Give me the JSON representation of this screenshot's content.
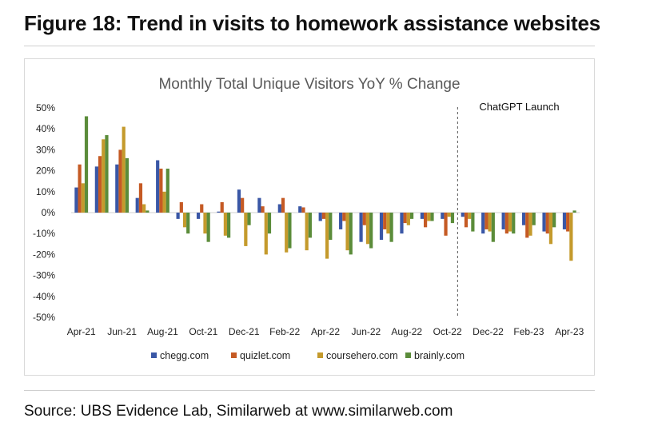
{
  "figure": {
    "title": "Figure 18: Trend in visits to homework assistance websites",
    "source": "Source: UBS Evidence Lab, Similarweb at www.similarweb.com"
  },
  "chart_data": {
    "type": "bar",
    "title": "Monthly Total Unique Visitors YoY % Change",
    "xlabel": "",
    "ylabel": "",
    "ylim": [
      -50,
      50
    ],
    "y_ticks": [
      "50%",
      "40%",
      "30%",
      "20%",
      "10%",
      "0%",
      "-10%",
      "-20%",
      "-30%",
      "-40%",
      "-50%"
    ],
    "y_tick_values": [
      50,
      40,
      30,
      20,
      10,
      0,
      -10,
      -20,
      -30,
      -40,
      -50
    ],
    "categories": [
      "Apr-21",
      "May-21",
      "Jun-21",
      "Jul-21",
      "Aug-21",
      "Sep-21",
      "Oct-21",
      "Nov-21",
      "Dec-21",
      "Jan-22",
      "Feb-22",
      "Mar-22",
      "Apr-22",
      "May-22",
      "Jun-22",
      "Jul-22",
      "Aug-22",
      "Sep-22",
      "Oct-22",
      "Nov-22",
      "Dec-22",
      "Jan-23",
      "Feb-23",
      "Mar-23",
      "Apr-23"
    ],
    "x_tick_labels": [
      "Apr-21",
      "",
      "Jun-21",
      "",
      "Aug-21",
      "",
      "Oct-21",
      "",
      "Dec-21",
      "",
      "Feb-22",
      "",
      "Apr-22",
      "",
      "Jun-22",
      "",
      "Aug-22",
      "",
      "Oct-22",
      "",
      "Dec-22",
      "",
      "Feb-23",
      "",
      "Apr-23"
    ],
    "series": [
      {
        "name": "chegg.com",
        "color": "#3A57A6",
        "values": [
          12,
          22,
          23,
          7,
          25,
          -3,
          -3,
          0.5,
          11,
          7,
          4,
          3,
          -4,
          -8,
          -14,
          -13,
          -10,
          -3,
          -3,
          -2,
          -10,
          -8,
          -6,
          -9,
          -8
        ]
      },
      {
        "name": "quizlet.com",
        "color": "#C55A24",
        "values": [
          23,
          27,
          30,
          14,
          21,
          5,
          4,
          5,
          7,
          3,
          7,
          2.5,
          -3,
          -4,
          -6,
          -8,
          -5,
          -7,
          -11,
          -7,
          -8,
          -10,
          -12,
          -10,
          -9
        ]
      },
      {
        "name": "coursehero.com",
        "color": "#C49A2C",
        "values": [
          14,
          35,
          41,
          4,
          10,
          -7,
          -10,
          -11,
          -16,
          -20,
          -19,
          -18,
          -22,
          -18,
          -15,
          -10,
          -6,
          -4,
          -2,
          -3,
          -9,
          -9,
          -11,
          -15,
          -23
        ]
      },
      {
        "name": "brainly.com",
        "color": "#5B8C3A",
        "values": [
          46,
          37,
          26,
          1,
          21,
          -10,
          -14,
          -12,
          -6,
          -10,
          -17,
          -12,
          -13,
          -20,
          -17,
          -14,
          -3,
          -4,
          -5,
          -9,
          -14,
          -10,
          -6,
          -7,
          1
        ]
      }
    ],
    "annotation": {
      "label": "ChatGPT Launch",
      "between": [
        "Oct-22",
        "Nov-22"
      ],
      "style": "dashed"
    },
    "legend": {
      "position": "bottom",
      "labels": [
        "chegg.com",
        "quizlet.com",
        "coursehero.com",
        "brainly.com"
      ]
    },
    "grid": false
  }
}
